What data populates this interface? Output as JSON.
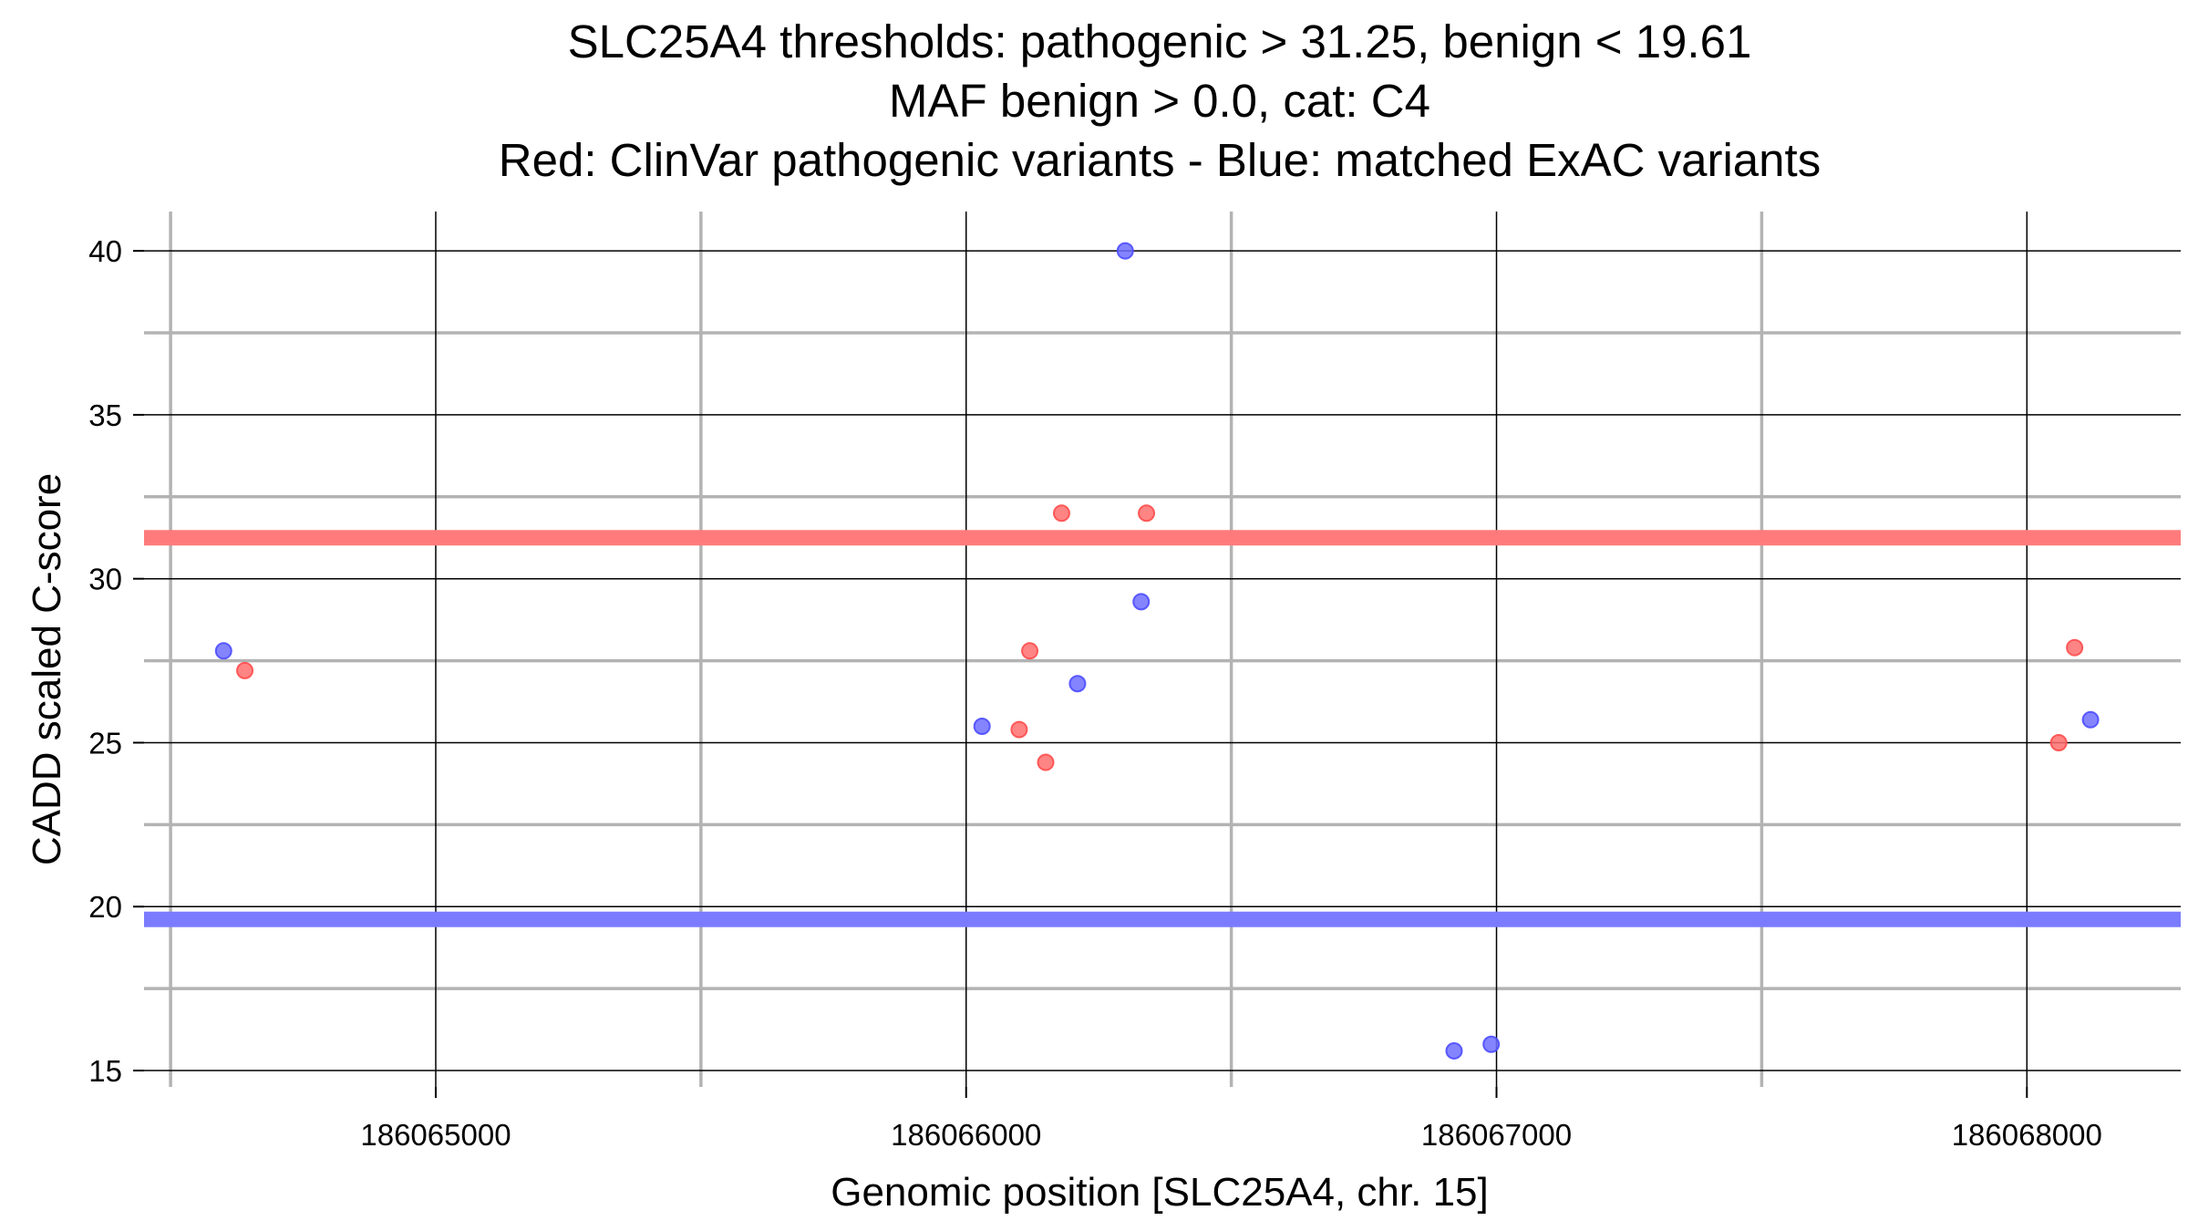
{
  "chart_data": {
    "type": "scatter",
    "title_lines": [
      "SLC25A4 thresholds: pathogenic > 31.25, benign < 19.61",
      "MAF benign > 0.0, cat: C4",
      "Red: ClinVar pathogenic variants - Blue: matched ExAC variants"
    ],
    "xlabel": "Genomic position [SLC25A4, chr. 15]",
    "ylabel": "CADD scaled C-score",
    "xlim": [
      186064450,
      186068290
    ],
    "ylim": [
      14.5,
      41.2
    ],
    "x_ticks": [
      186065000,
      186066000,
      186067000,
      186068000
    ],
    "y_ticks": [
      15,
      20,
      25,
      30,
      35,
      40
    ],
    "x_minor_grid": [
      186064500,
      186065500,
      186066500,
      186067500
    ],
    "y_minor_grid": [
      17.5,
      22.5,
      27.5,
      32.5,
      37.5
    ],
    "grid": true,
    "thresholds": [
      {
        "value": 31.25,
        "color": "#ff7b7b"
      },
      {
        "value": 19.61,
        "color": "#7b7bff"
      }
    ],
    "series": [
      {
        "color": "#ff6f6f",
        "points": [
          {
            "x": 186064640,
            "y": 27.2
          },
          {
            "x": 186066100,
            "y": 25.4
          },
          {
            "x": 186066120,
            "y": 27.8
          },
          {
            "x": 186066150,
            "y": 24.4
          },
          {
            "x": 186066180,
            "y": 32.0
          },
          {
            "x": 186066340,
            "y": 32.0
          },
          {
            "x": 186068060,
            "y": 25.0
          },
          {
            "x": 186068090,
            "y": 27.9
          }
        ]
      },
      {
        "color": "#6f6fff",
        "points": [
          {
            "x": 186064600,
            "y": 27.8
          },
          {
            "x": 186066030,
            "y": 25.5
          },
          {
            "x": 186066210,
            "y": 26.8
          },
          {
            "x": 186066300,
            "y": 40.0
          },
          {
            "x": 186066330,
            "y": 29.3
          },
          {
            "x": 186066920,
            "y": 15.6
          },
          {
            "x": 186066990,
            "y": 15.8
          },
          {
            "x": 186068120,
            "y": 25.7
          }
        ]
      }
    ]
  }
}
